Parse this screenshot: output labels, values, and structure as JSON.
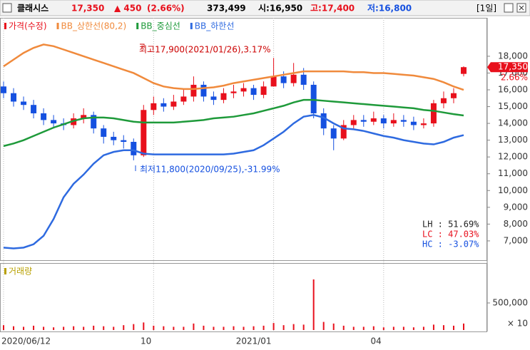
{
  "header": {
    "name": "클래시스",
    "price": "17,350",
    "change": "▲ 450",
    "change_pct": "(2.66%)",
    "volume": "373,499",
    "open": "시:16,950",
    "high": "고:17,400",
    "low": "저:16,800",
    "period": "[1일]"
  },
  "chart_data": {
    "type": "candlestick",
    "legend": [
      "가격(수정)",
      "BB_상한선(80,2)",
      "BB_중심선",
      "BB_하한선"
    ],
    "categories": [
      "2020/06/12",
      null,
      null,
      null,
      null,
      null,
      null,
      null,
      null,
      null,
      null,
      null,
      null,
      null,
      null,
      "10",
      null,
      null,
      null,
      null,
      null,
      null,
      null,
      null,
      null,
      null,
      null,
      "2021/01",
      null,
      null,
      null,
      null,
      null,
      null,
      null,
      null,
      null,
      null,
      "04",
      null,
      null,
      null,
      null,
      null,
      null,
      null,
      null
    ],
    "up_color": "#e8101c",
    "down_color": "#1550e0",
    "open": [
      16200,
      15800,
      15300,
      15100,
      14600,
      14200,
      14000,
      13900,
      14300,
      14500,
      13700,
      13200,
      13000,
      12900,
      12100,
      14800,
      15200,
      15000,
      15300,
      15600,
      16300,
      15600,
      15400,
      15800,
      15900,
      16100,
      15700,
      16200,
      16800,
      16400,
      16900,
      16300,
      14600,
      13700,
      13100,
      13900,
      14200,
      14100,
      14300,
      14000,
      14200,
      14100,
      13900,
      14000,
      15200,
      15500,
      16950
    ],
    "high": [
      16500,
      16100,
      15600,
      15400,
      14900,
      14500,
      14300,
      14600,
      14900,
      14700,
      13900,
      13500,
      13300,
      13100,
      15100,
      15600,
      15500,
      15700,
      16000,
      16800,
      16500,
      15900,
      16100,
      16300,
      16400,
      16300,
      16500,
      17900,
      17100,
      17600,
      17300,
      16500,
      14900,
      13900,
      14200,
      14500,
      14500,
      14700,
      14500,
      14600,
      14500,
      14400,
      14300,
      15400,
      15900,
      16100,
      17400
    ],
    "low": [
      15500,
      15000,
      14800,
      14300,
      13900,
      13700,
      13600,
      13700,
      14000,
      13400,
      12800,
      12700,
      12500,
      11800,
      12000,
      14500,
      14700,
      14800,
      15100,
      15300,
      15300,
      15100,
      15200,
      15500,
      15600,
      15400,
      15500,
      16300,
      16100,
      16200,
      16000,
      14300,
      13300,
      12400,
      13000,
      13700,
      13800,
      13900,
      13700,
      13800,
      13800,
      13600,
      13700,
      13800,
      14900,
      15200,
      16800
    ],
    "close": [
      15800,
      15300,
      15100,
      14600,
      14200,
      14000,
      13900,
      14300,
      14500,
      13700,
      13200,
      13000,
      12900,
      12100,
      14800,
      15200,
      15000,
      15300,
      15600,
      16300,
      15600,
      15400,
      15800,
      15900,
      16100,
      15700,
      16200,
      16800,
      16400,
      16900,
      16300,
      14600,
      13700,
      13100,
      13900,
      14200,
      14100,
      14300,
      14000,
      14200,
      14100,
      13900,
      14000,
      15200,
      15500,
      15800,
      17350
    ],
    "series": [
      {
        "name": "BB_상한선(80,2)",
        "color": "#f08a3c",
        "values": [
          17400,
          17800,
          18200,
          18500,
          18700,
          18600,
          18400,
          18200,
          18000,
          17800,
          17600,
          17400,
          17200,
          17000,
          16700,
          16400,
          16200,
          16100,
          16050,
          16050,
          16100,
          16150,
          16250,
          16400,
          16500,
          16600,
          16700,
          16800,
          16900,
          17000,
          17100,
          17100,
          17100,
          17100,
          17100,
          17050,
          17050,
          17000,
          17000,
          16950,
          16900,
          16850,
          16750,
          16650,
          16450,
          16200,
          16000
        ]
      },
      {
        "name": "BB_중심선",
        "color": "#1e9a3a",
        "values": [
          12650,
          12800,
          13000,
          13250,
          13500,
          13750,
          13950,
          14150,
          14300,
          14350,
          14350,
          14300,
          14200,
          14100,
          14050,
          14050,
          14050,
          14050,
          14100,
          14150,
          14200,
          14300,
          14350,
          14400,
          14500,
          14600,
          14750,
          14900,
          15050,
          15250,
          15400,
          15400,
          15350,
          15300,
          15250,
          15200,
          15150,
          15100,
          15050,
          15000,
          14950,
          14900,
          14800,
          14750,
          14650,
          14550,
          14470
        ]
      },
      {
        "name": "BB_하한선",
        "color": "#2e6ae0",
        "values": [
          6600,
          6550,
          6600,
          6800,
          7300,
          8300,
          9600,
          10400,
          10950,
          11600,
          12100,
          12300,
          12400,
          12400,
          12200,
          12150,
          12150,
          12150,
          12150,
          12150,
          12150,
          12150,
          12150,
          12200,
          12300,
          12400,
          12700,
          13100,
          13500,
          14000,
          14400,
          14500,
          14350,
          14000,
          13700,
          13650,
          13550,
          13400,
          13250,
          13150,
          13000,
          12900,
          12800,
          12750,
          12900,
          13150,
          13300
        ]
      }
    ],
    "ylim": [
      5850,
      20290
    ],
    "yticks": [
      {
        "value": 7000,
        "label": "7,000"
      },
      {
        "value": 8000,
        "label": "8,000"
      },
      {
        "value": 9000,
        "label": "9,000"
      },
      {
        "value": 10000,
        "label": "10,000"
      },
      {
        "value": 11000,
        "label": "11,000"
      },
      {
        "value": 12000,
        "label": "12,000"
      },
      {
        "value": 13000,
        "label": "13,000"
      },
      {
        "value": 14000,
        "label": "14,000"
      },
      {
        "value": 15000,
        "label": "15,000"
      },
      {
        "value": 16000,
        "label": "16,000"
      },
      {
        "value": 17000,
        "label": "17,000"
      },
      {
        "value": 18000,
        "label": "18,000"
      }
    ],
    "price_tag": {
      "value": 17350,
      "label": "17,350",
      "pct": "2.66%"
    },
    "annotations": {
      "high": "최고17,900(2021/01/26),3.17%",
      "low": "최저11,800(2020/09/25),-31.99%"
    },
    "stats": [
      "LH : 51.69%",
      "LC : 47.03%",
      "HC : -3.07%"
    ],
    "volume": {
      "title": "거래량",
      "multiplier": "× 10",
      "color": "#e8101c",
      "values": [
        90000,
        70000,
        60000,
        80000,
        60000,
        50000,
        60000,
        70000,
        60000,
        80000,
        70000,
        60000,
        90000,
        110000,
        140000,
        80000,
        70000,
        60000,
        60000,
        120000,
        80000,
        60000,
        60000,
        70000,
        60000,
        70000,
        80000,
        130000,
        90000,
        110000,
        100000,
        934000,
        150000,
        120000,
        80000,
        60000,
        60000,
        70000,
        50000,
        60000,
        60000,
        50000,
        60000,
        100000,
        90000,
        80000,
        120000
      ],
      "ylim": [
        0,
        1197000
      ],
      "yticks": [
        {
          "value": 500000,
          "label": "500,000"
        }
      ]
    }
  }
}
